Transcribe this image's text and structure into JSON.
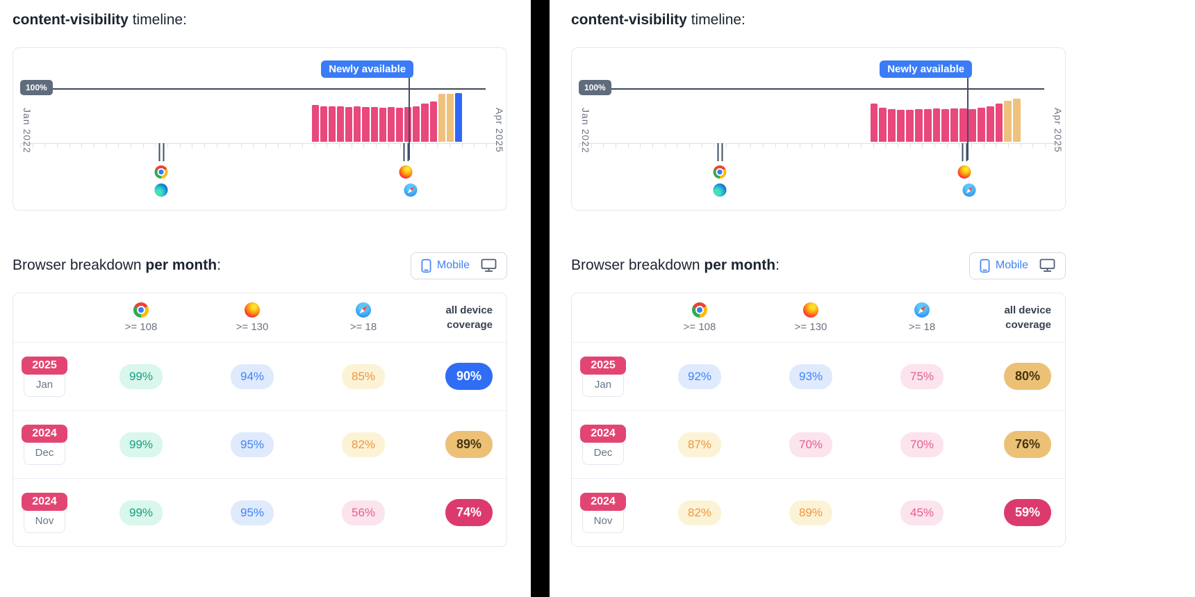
{
  "panels": [
    {
      "title_code": "content-visibility",
      "title_rest": " timeline:",
      "breakdown_pre": "Browser breakdown ",
      "breakdown_bold": "per month",
      "breakdown_post": ":",
      "toggle": {
        "mobile_label": "Mobile",
        "selected": "mobile"
      }
    },
    {
      "title_code": "content-visibility",
      "title_rest": " timeline:",
      "breakdown_pre": "Browser breakdown ",
      "breakdown_bold": "per month",
      "breakdown_post": ":",
      "toggle": {
        "mobile_label": "Mobile",
        "selected": "mobile"
      }
    }
  ],
  "icons": {
    "browser_icons": [
      "chrome-icon",
      "edge-icon",
      "firefox-icon",
      "safari-icon"
    ],
    "toggle_icons": [
      "phone-icon",
      "monitor-icon"
    ]
  },
  "colors": {
    "bar_pink": "#e8487b",
    "bar_tan": "#eec17d",
    "bar_blue": "#2e68f6",
    "newly_badge_blue": "#3b7cf6",
    "accent_blue": "#3e82f5",
    "coverage_crimson": "#dc3a6d",
    "coverage_tan": "#ecc176",
    "reference_badge_gray": "#606b7b"
  },
  "chart_data": [
    {
      "panel": "left",
      "type": "bar",
      "title": "content-visibility timeline",
      "x_axis": {
        "start": "Jan 2022",
        "end": "Apr 2025"
      },
      "ylim": [
        0,
        100
      ],
      "reference_line": {
        "label": "100%",
        "value": 100
      },
      "annotation": {
        "label": "Newly available",
        "x_pos_pct": 80.3
      },
      "browser_markers": [
        {
          "browsers": [
            "chrome",
            "edge"
          ],
          "x_pos_pct": 30
        },
        {
          "browsers": [
            "firefox",
            "safari"
          ],
          "x_pos_pct": 79.6
        }
      ],
      "bars": [
        {
          "v": 68,
          "tone": "pink"
        },
        {
          "v": 66,
          "tone": "pink"
        },
        {
          "v": 65,
          "tone": "pink"
        },
        {
          "v": 65,
          "tone": "pink"
        },
        {
          "v": 64,
          "tone": "pink"
        },
        {
          "v": 65,
          "tone": "pink"
        },
        {
          "v": 64,
          "tone": "pink"
        },
        {
          "v": 64,
          "tone": "pink"
        },
        {
          "v": 63,
          "tone": "pink"
        },
        {
          "v": 64,
          "tone": "pink"
        },
        {
          "v": 63,
          "tone": "pink"
        },
        {
          "v": 64,
          "tone": "pink"
        },
        {
          "v": 66,
          "tone": "pink"
        },
        {
          "v": 70,
          "tone": "pink"
        },
        {
          "v": 74,
          "tone": "pink"
        },
        {
          "v": 88,
          "tone": "tan"
        },
        {
          "v": 89,
          "tone": "tan"
        },
        {
          "v": 90,
          "tone": "blue"
        }
      ]
    },
    {
      "panel": "left",
      "type": "table",
      "columns": [
        {
          "browser": "chrome",
          "version": ">= 108"
        },
        {
          "browser": "firefox",
          "version": ">= 130"
        },
        {
          "browser": "safari",
          "version": ">= 18"
        }
      ],
      "coverage_header": "all device coverage",
      "rows": [
        {
          "year": "2025",
          "month": "Jan",
          "cells": [
            {
              "text": "99%",
              "tone": "green"
            },
            {
              "text": "94%",
              "tone": "blue"
            },
            {
              "text": "85%",
              "tone": "orange"
            }
          ],
          "coverage": {
            "text": "90%",
            "tone": "blue"
          }
        },
        {
          "year": "2024",
          "month": "Dec",
          "cells": [
            {
              "text": "99%",
              "tone": "green"
            },
            {
              "text": "95%",
              "tone": "blue"
            },
            {
              "text": "82%",
              "tone": "orange"
            }
          ],
          "coverage": {
            "text": "89%",
            "tone": "tan"
          }
        },
        {
          "year": "2024",
          "month": "Nov",
          "cells": [
            {
              "text": "99%",
              "tone": "green"
            },
            {
              "text": "95%",
              "tone": "blue"
            },
            {
              "text": "56%",
              "tone": "pink"
            }
          ],
          "coverage": {
            "text": "74%",
            "tone": "crimson"
          }
        }
      ]
    },
    {
      "panel": "right",
      "type": "bar",
      "title": "content-visibility timeline",
      "x_axis": {
        "start": "Jan 2022",
        "end": "Apr 2025"
      },
      "ylim": [
        0,
        100
      ],
      "reference_line": {
        "label": "100%",
        "value": 100
      },
      "annotation": {
        "label": "Newly available",
        "x_pos_pct": 80.3
      },
      "browser_markers": [
        {
          "browsers": [
            "chrome",
            "edge"
          ],
          "x_pos_pct": 30
        },
        {
          "browsers": [
            "firefox",
            "safari"
          ],
          "x_pos_pct": 79.6
        }
      ],
      "bars": [
        {
          "v": 70,
          "tone": "pink"
        },
        {
          "v": 63,
          "tone": "pink"
        },
        {
          "v": 60,
          "tone": "pink"
        },
        {
          "v": 59,
          "tone": "pink"
        },
        {
          "v": 59,
          "tone": "pink"
        },
        {
          "v": 60,
          "tone": "pink"
        },
        {
          "v": 60,
          "tone": "pink"
        },
        {
          "v": 61,
          "tone": "pink"
        },
        {
          "v": 60,
          "tone": "pink"
        },
        {
          "v": 61,
          "tone": "pink"
        },
        {
          "v": 62,
          "tone": "pink"
        },
        {
          "v": 60,
          "tone": "pink"
        },
        {
          "v": 63,
          "tone": "pink"
        },
        {
          "v": 66,
          "tone": "pink"
        },
        {
          "v": 71,
          "tone": "pink"
        },
        {
          "v": 76,
          "tone": "tan"
        },
        {
          "v": 80,
          "tone": "tan"
        }
      ]
    },
    {
      "panel": "right",
      "type": "table",
      "columns": [
        {
          "browser": "chrome",
          "version": ">= 108"
        },
        {
          "browser": "firefox",
          "version": ">= 130"
        },
        {
          "browser": "safari",
          "version": ">= 18"
        }
      ],
      "coverage_header": "all device coverage",
      "rows": [
        {
          "year": "2025",
          "month": "Jan",
          "cells": [
            {
              "text": "92%",
              "tone": "blue"
            },
            {
              "text": "93%",
              "tone": "blue"
            },
            {
              "text": "75%",
              "tone": "pink"
            }
          ],
          "coverage": {
            "text": "80%",
            "tone": "tan"
          }
        },
        {
          "year": "2024",
          "month": "Dec",
          "cells": [
            {
              "text": "87%",
              "tone": "orange"
            },
            {
              "text": "70%",
              "tone": "pink"
            },
            {
              "text": "70%",
              "tone": "pink"
            }
          ],
          "coverage": {
            "text": "76%",
            "tone": "tan"
          }
        },
        {
          "year": "2024",
          "month": "Nov",
          "cells": [
            {
              "text": "82%",
              "tone": "orange"
            },
            {
              "text": "89%",
              "tone": "orange"
            },
            {
              "text": "45%",
              "tone": "pink"
            }
          ],
          "coverage": {
            "text": "59%",
            "tone": "crimson"
          }
        }
      ]
    }
  ]
}
